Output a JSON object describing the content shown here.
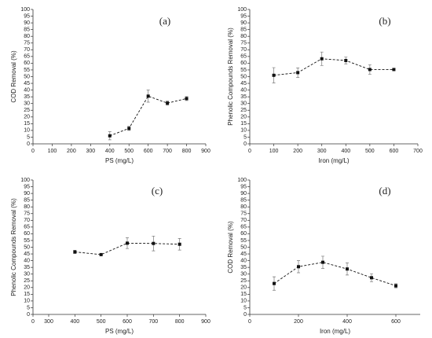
{
  "chart_data": [
    {
      "type": "line",
      "annotation": "(a)",
      "x_label": "PS (mg/L)",
      "y_label": "COD Removal (%)",
      "x": [
        400,
        500,
        600,
        700,
        800
      ],
      "values": [
        6,
        11.5,
        35.5,
        30.3,
        33.7
      ],
      "errors": [
        3,
        1.5,
        4.5,
        1.5,
        1.5
      ],
      "color": "#111111",
      "xlim": [
        0,
        900
      ],
      "xticks": [
        0,
        100,
        200,
        300,
        400,
        500,
        600,
        700,
        800,
        900
      ],
      "ylim": [
        0,
        100
      ],
      "yticks": [
        0,
        5,
        10,
        15,
        20,
        25,
        30,
        35,
        40,
        45,
        50,
        55,
        60,
        65,
        70,
        75,
        80,
        85,
        90,
        95,
        100
      ]
    },
    {
      "type": "line",
      "annotation": "(b)",
      "x_label": "Iron (mg/L)",
      "y_label": "Phenolic Compounds Removal (%)",
      "x": [
        100,
        200,
        300,
        400,
        500,
        600
      ],
      "values": [
        51,
        53,
        63.3,
        62,
        55.3,
        55.3
      ],
      "errors": [
        5.7,
        3.5,
        5,
        2.5,
        3.5,
        0.5
      ],
      "color": "#111111",
      "xlim": [
        0,
        700
      ],
      "xticks": [
        0,
        100,
        200,
        300,
        400,
        500,
        600,
        700
      ],
      "ylim": [
        0,
        100
      ],
      "yticks": [
        0,
        5,
        10,
        15,
        20,
        25,
        30,
        35,
        40,
        45,
        50,
        55,
        60,
        65,
        70,
        75,
        80,
        85,
        90,
        95,
        100
      ]
    },
    {
      "type": "line",
      "annotation": "(c)",
      "x_label": "PS (mg/L)",
      "y_label": "Phenolic Compounds Removal (%)",
      "x": [
        400,
        500,
        600,
        700,
        800
      ],
      "values": [
        46.5,
        44.5,
        53,
        52.8,
        52.2
      ],
      "errors": [
        1.2,
        0.5,
        4,
        5.5,
        4.3
      ],
      "color": "#111111",
      "xlim": [
        0,
        900
      ],
      "x_break": [
        0,
        300
      ],
      "xticks": [
        0,
        300,
        400,
        500,
        600,
        700,
        800,
        900
      ],
      "ylim": [
        0,
        100
      ],
      "yticks": [
        0,
        5,
        10,
        15,
        20,
        25,
        30,
        35,
        40,
        45,
        50,
        55,
        60,
        65,
        70,
        75,
        80,
        85,
        90,
        95,
        100
      ]
    },
    {
      "type": "line",
      "annotation": "(d)",
      "x_label": "Iron (mg/L)",
      "y_label": "COD Removal (%)",
      "x": [
        100,
        200,
        300,
        400,
        500,
        600
      ],
      "values": [
        23,
        35.5,
        38.8,
        33.8,
        27.3,
        21.3
      ],
      "errors": [
        5,
        4.5,
        4.5,
        4.5,
        3,
        1.5
      ],
      "color": "#111111",
      "xlim": [
        0,
        700
      ],
      "xticks": [
        0,
        200,
        400,
        600
      ],
      "ylim": [
        0,
        100
      ],
      "yticks": [
        0,
        5,
        10,
        15,
        20,
        25,
        30,
        35,
        40,
        45,
        50,
        55,
        60,
        65,
        70,
        75,
        80,
        85,
        90,
        95,
        100
      ]
    }
  ]
}
